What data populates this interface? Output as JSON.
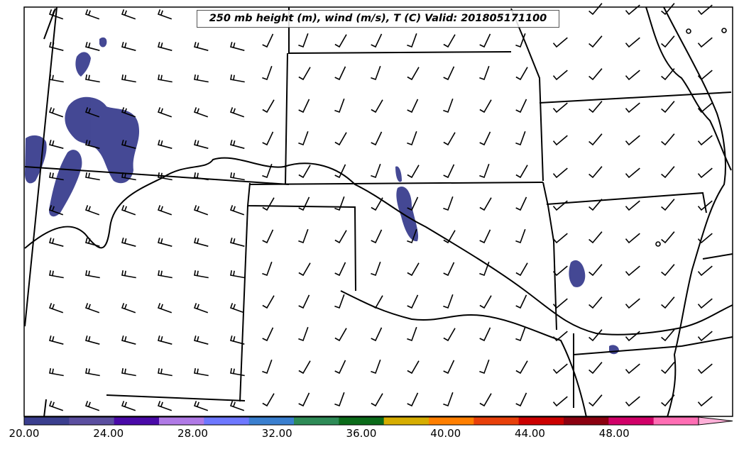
{
  "title": "250 mb height (m), wind (m/s), T (C) Valid: 201805171100",
  "colorbar": {
    "tick_labels": [
      "20.00",
      "24.00",
      "28.00",
      "32.00",
      "36.00",
      "40.00",
      "44.00",
      "48.00"
    ],
    "range": [
      20,
      52
    ],
    "extend": "max",
    "colors": [
      "#3b3f8f",
      "#5b4fa0",
      "#4a0aa8",
      "#b07ae6",
      "#6e78ff",
      "#3a7fcf",
      "#2e8b57",
      "#0b6b1a",
      "#d6ad00",
      "#ff7f00",
      "#e8400a",
      "#cc0000",
      "#8b0010",
      "#d10068",
      "#ff6eb4",
      "#ffb0d8"
    ]
  },
  "map": {
    "background": "#ffffff",
    "border_color": "#000000",
    "shading_color": "#3b3f8f",
    "barb_color": "#000000"
  }
}
